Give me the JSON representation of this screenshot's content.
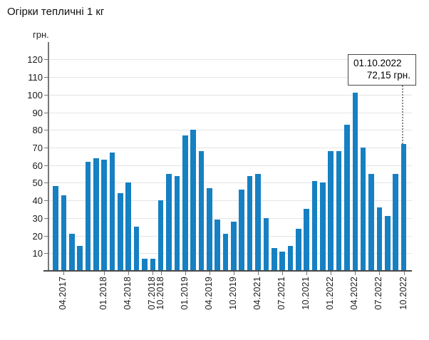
{
  "chart_data": {
    "type": "bar",
    "title": "Огірки тепличні 1 кг",
    "ylabel": "грн.",
    "ylim": [
      0,
      128
    ],
    "y_ticks": [
      10,
      20,
      30,
      40,
      50,
      60,
      70,
      80,
      90,
      100,
      110,
      120
    ],
    "grid": true,
    "legend": "none",
    "bar_color": "#1680c2",
    "grid_color": "#e4e4e4",
    "axis_color": "#777777",
    "values": [
      48,
      43,
      21,
      14,
      62,
      64,
      63,
      67,
      44,
      50,
      25,
      7,
      7,
      40,
      55,
      54,
      77,
      80,
      68,
      47,
      29,
      21,
      28,
      46,
      54,
      55,
      30,
      13,
      11,
      14,
      24,
      35,
      51,
      50,
      68,
      68,
      83,
      101,
      70,
      55,
      36,
      31,
      55,
      72.15
    ],
    "x_tick_labels": [
      {
        "label": "04.2017",
        "bar_index": 1
      },
      {
        "label": "01.2018",
        "bar_index": 6
      },
      {
        "label": "04.2018",
        "bar_index": 9
      },
      {
        "label": "07.2018",
        "bar_index": 12
      },
      {
        "label": "10.2018",
        "bar_index": 13
      },
      {
        "label": "01.2019",
        "bar_index": 16
      },
      {
        "label": "04.2019",
        "bar_index": 19
      },
      {
        "label": "10.2019",
        "bar_index": 22
      },
      {
        "label": "04.2021",
        "bar_index": 25
      },
      {
        "label": "07.2021",
        "bar_index": 28
      },
      {
        "label": "10.2021",
        "bar_index": 31
      },
      {
        "label": "01.2022",
        "bar_index": 34
      },
      {
        "label": "04.2022",
        "bar_index": 37
      },
      {
        "label": "07.2022",
        "bar_index": 40
      },
      {
        "label": "10.2022",
        "bar_index": 43
      }
    ],
    "annotation": {
      "date": "01.10.2022",
      "price": "72,15 грн.",
      "bar_index": 43
    }
  }
}
